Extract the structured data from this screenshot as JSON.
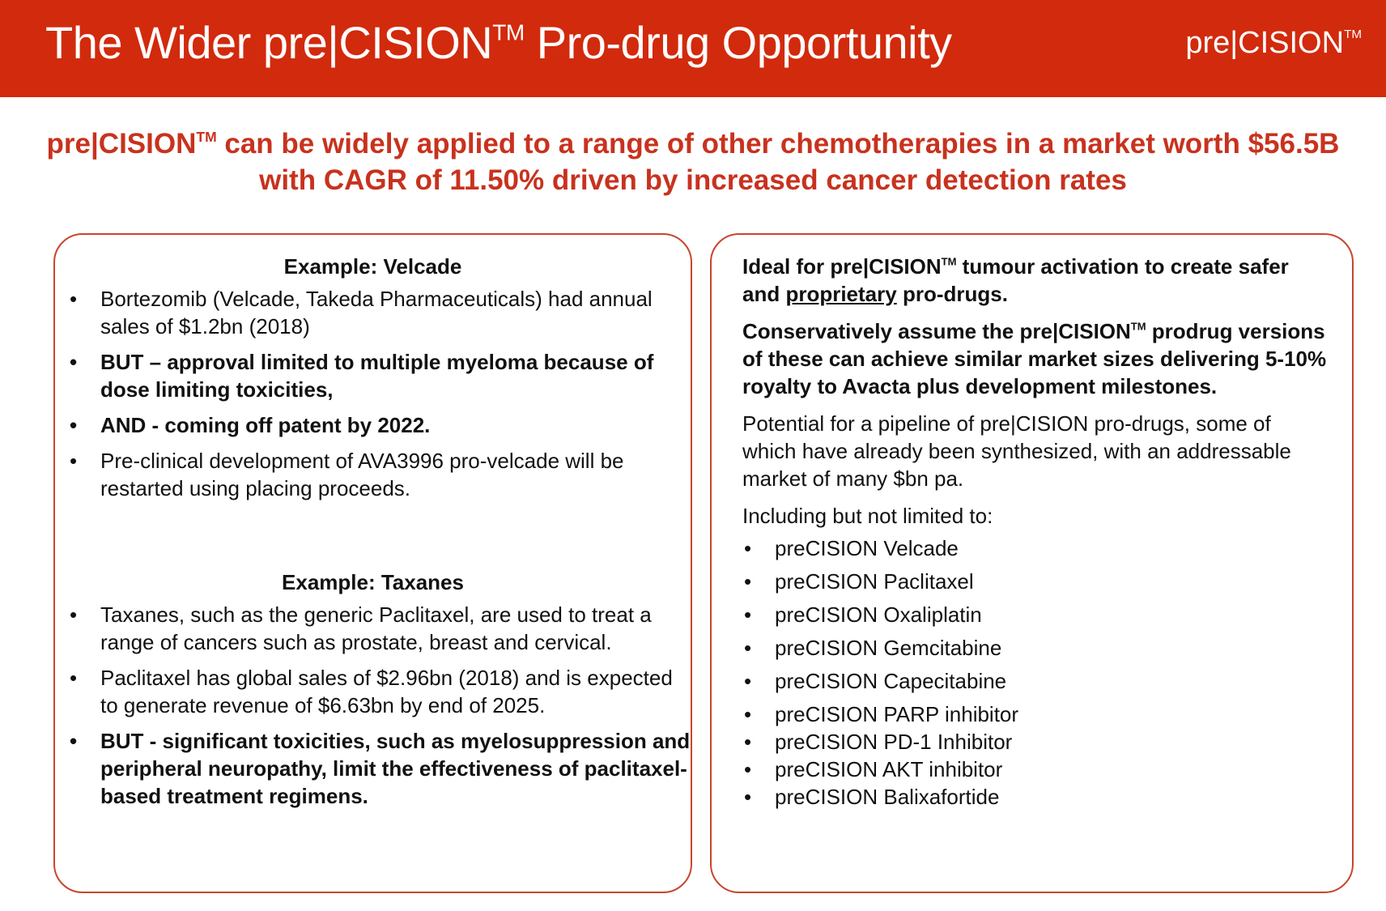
{
  "header": {
    "title_pre": "The Wider pre|CISION",
    "title_tm": "TM",
    "title_post": " Pro-drug Opportunity",
    "logo_text": "pre|CISION",
    "logo_tm": "TM",
    "brand_color": "#d22a0c"
  },
  "headline": {
    "brand": "pre|CISION",
    "tm": "TM",
    "text": " can be widely applied to a range of other chemotherapies in a market worth $56.5B with CAGR of 11.50% driven by increased cancer detection rates",
    "color": "#c8321e"
  },
  "left_panel": {
    "velcade": {
      "title": "Example: Velcade",
      "bullets": [
        "Bortezomib (Velcade, Takeda Pharmaceuticals) had annual sales of $1.2bn (2018)",
        "BUT – approval limited to multiple myeloma because of dose limiting toxicities,",
        "AND - coming off patent by 2022.",
        "Pre-clinical development of AVA3996 pro-velcade will be restarted using placing proceeds."
      ]
    },
    "taxanes": {
      "title": "Example: Taxanes",
      "bullets": [
        "Taxanes, such as the generic Paclitaxel, are used to treat a range of cancers such as prostate, breast and cervical.",
        "Paclitaxel has global sales of $2.96bn (2018) and is expected to generate revenue of $6.63bn by end of 2025.",
        "BUT - significant toxicities, such as myelosuppression and peripheral neuropathy, limit the effectiveness of paclitaxel-based treatment regimens."
      ]
    }
  },
  "right_panel": {
    "ideal_a": "Ideal for pre|CISION",
    "ideal_tm": "TM",
    "ideal_b": " tumour activation to create safer and ",
    "ideal_underlined": "proprietary",
    "ideal_c": " pro-drugs.",
    "assume_a": "Conservatively assume the pre|CISION",
    "assume_tm": "TM",
    "assume_b": " prodrug versions of these can achieve similar market sizes delivering 5-10% royalty to Avacta plus development milestones.",
    "potential": "Potential for a pipeline of pre|CISION pro-drugs, some of which have already been synthesized, with an addressable market of many $bn pa.",
    "including": "Including but not limited to:",
    "pipeline": [
      "preCISION Velcade",
      "preCISION Paclitaxel",
      "preCISION Oxaliplatin",
      "preCISION Gemcitabine",
      "preCISION Capecitabine",
      "preCISION PARP inhibitor",
      "preCISION PD-1 Inhibitor",
      "preCISION AKT inhibitor",
      "preCISION Balixafortide"
    ]
  }
}
